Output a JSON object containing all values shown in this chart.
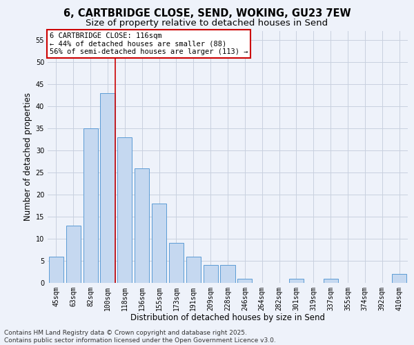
{
  "title_line1": "6, CARTBRIDGE CLOSE, SEND, WOKING, GU23 7EW",
  "title_line2": "Size of property relative to detached houses in Send",
  "xlabel": "Distribution of detached houses by size in Send",
  "ylabel": "Number of detached properties",
  "categories": [
    "45sqm",
    "63sqm",
    "82sqm",
    "100sqm",
    "118sqm",
    "136sqm",
    "155sqm",
    "173sqm",
    "191sqm",
    "209sqm",
    "228sqm",
    "246sqm",
    "264sqm",
    "282sqm",
    "301sqm",
    "319sqm",
    "337sqm",
    "355sqm",
    "374sqm",
    "392sqm",
    "410sqm"
  ],
  "values": [
    6,
    13,
    35,
    43,
    33,
    26,
    18,
    9,
    6,
    4,
    4,
    1,
    0,
    0,
    1,
    0,
    1,
    0,
    0,
    0,
    2
  ],
  "bar_color": "#c5d8f0",
  "bar_edge_color": "#5b9bd5",
  "vline_x_index": 3.45,
  "annotation_text_line1": "6 CARTBRIDGE CLOSE: 116sqm",
  "annotation_text_line2": "← 44% of detached houses are smaller (88)",
  "annotation_text_line3": "56% of semi-detached houses are larger (113) →",
  "annotation_box_color": "#ffffff",
  "annotation_edge_color": "#cc0000",
  "vline_color": "#cc0000",
  "ylim": [
    0,
    57
  ],
  "yticks": [
    0,
    5,
    10,
    15,
    20,
    25,
    30,
    35,
    40,
    45,
    50,
    55
  ],
  "grid_color": "#c8d0df",
  "background_color": "#eef2fa",
  "axes_background": "#eef2fa",
  "footnote_line1": "Contains HM Land Registry data © Crown copyright and database right 2025.",
  "footnote_line2": "Contains public sector information licensed under the Open Government Licence v3.0.",
  "title_fontsize": 10.5,
  "subtitle_fontsize": 9.5,
  "tick_fontsize": 7,
  "ylabel_fontsize": 8.5,
  "xlabel_fontsize": 8.5,
  "annotation_fontsize": 7.5,
  "footnote_fontsize": 6.5
}
